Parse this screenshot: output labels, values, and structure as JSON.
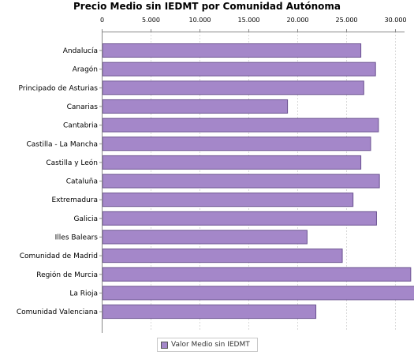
{
  "chart_data": {
    "type": "bar",
    "orientation": "horizontal",
    "title": "Precio Medio sin IEDMT por Comunidad Autónoma",
    "categories": [
      "Andalucía",
      "Aragón",
      "Principado de Asturias",
      "Canarias",
      "Cantabria",
      "Castilla - La Mancha",
      "Castilla y León",
      "Cataluña",
      "Extremadura",
      "Galicia",
      "Illes Balears",
      "Comunidad de Madrid",
      "Región de Murcia",
      "La Rioja",
      "Comunidad Valenciana"
    ],
    "series": [
      {
        "name": "Valor Medio sin IEDMT",
        "values": [
          26500,
          28000,
          26800,
          19000,
          28300,
          27500,
          26500,
          28400,
          25700,
          28100,
          21000,
          24600,
          31600,
          32700,
          21900
        ]
      }
    ],
    "xlim": [
      0,
      34000
    ],
    "xticks": [
      0,
      5000,
      10000,
      15000,
      20000,
      25000,
      30000
    ],
    "xtick_labels": [
      "0",
      "5.000",
      "10.000",
      "15.000",
      "20.000",
      "25.000",
      "30.000"
    ],
    "x_axis_position": "top",
    "grid": true,
    "legend_position": "bottom",
    "colors": {
      "bar_fill": "#a487c9",
      "bar_stroke": "#6a5190",
      "grid": "#d9d9d9"
    }
  }
}
